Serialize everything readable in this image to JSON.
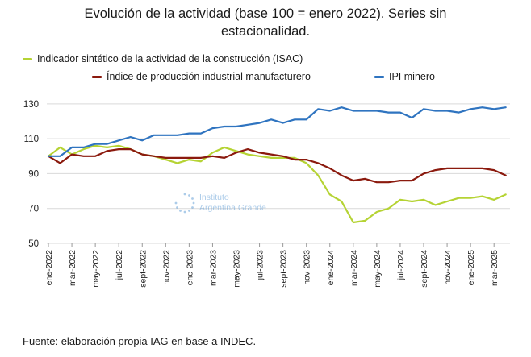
{
  "chart_data": {
    "type": "line",
    "title_line1": "Evolución de la actividad (base 100 = enero 2022). Series sin",
    "title_line2": "estacionalidad.",
    "xlabel": "",
    "ylabel": "",
    "ylim": [
      50,
      135
    ],
    "yticks": [
      50,
      70,
      90,
      110,
      130
    ],
    "grid": true,
    "legend_position": "top-left",
    "x_tick_labels": [
      "ene-2022",
      "mar-2022",
      "may-2022",
      "jul-2022",
      "sept-2022",
      "nov-2022",
      "ene-2023",
      "mar-2023",
      "may-2023",
      "jul-2023",
      "sept-2023",
      "nov-2023",
      "ene-2024",
      "mar-2024",
      "may-2024",
      "jul-2024",
      "sept-2024",
      "nov-2024",
      "ene-2025",
      "mar-2025"
    ],
    "months": [
      "ene-2022",
      "feb-2022",
      "mar-2022",
      "abr-2022",
      "may-2022",
      "jun-2022",
      "jul-2022",
      "ago-2022",
      "sept-2022",
      "oct-2022",
      "nov-2022",
      "dic-2022",
      "ene-2023",
      "feb-2023",
      "mar-2023",
      "abr-2023",
      "may-2023",
      "jun-2023",
      "jul-2023",
      "ago-2023",
      "sept-2023",
      "oct-2023",
      "nov-2023",
      "dic-2023",
      "ene-2024",
      "feb-2024",
      "mar-2024",
      "abr-2024",
      "may-2024",
      "jun-2024",
      "jul-2024",
      "ago-2024",
      "sept-2024",
      "oct-2024",
      "nov-2024",
      "dic-2024",
      "ene-2025",
      "feb-2025",
      "mar-2025",
      "abr-2025"
    ],
    "series": [
      {
        "name": "Indicador sintético de la actividad de la construcción (ISAC)",
        "color": "#b5d334",
        "values": [
          100,
          105,
          101,
          104,
          106,
          105,
          106,
          104,
          101,
          100,
          98,
          96,
          98,
          97,
          102,
          105,
          103,
          101,
          100,
          99,
          99,
          99,
          96,
          89,
          78,
          74,
          62,
          63,
          68,
          70,
          75,
          74,
          75,
          72,
          74,
          76,
          76,
          77,
          75,
          78
        ]
      },
      {
        "name": "Índice de producción industrial manufacturero",
        "color": "#8b1a0e",
        "values": [
          100,
          96,
          101,
          100,
          100,
          103,
          104,
          104,
          101,
          100,
          99,
          99,
          99,
          99,
          100,
          99,
          102,
          104,
          102,
          101,
          100,
          98,
          98,
          96,
          93,
          89,
          86,
          87,
          85,
          85,
          86,
          86,
          90,
          92,
          93,
          93,
          93,
          93,
          92,
          89
        ]
      },
      {
        "name": "IPI minero",
        "color": "#2f74c0",
        "values": [
          100,
          100,
          105,
          105,
          107,
          107,
          109,
          111,
          109,
          112,
          112,
          112,
          113,
          113,
          116,
          117,
          117,
          118,
          119,
          121,
          119,
          121,
          121,
          127,
          126,
          128,
          126,
          126,
          126,
          125,
          125,
          122,
          127,
          126,
          126,
          125,
          127,
          128,
          127,
          128
        ]
      }
    ]
  },
  "watermark": {
    "line1": "Instituto",
    "line2": "Argentina Grande"
  },
  "source": "Fuente: elaboración propia IAG en base a INDEC."
}
